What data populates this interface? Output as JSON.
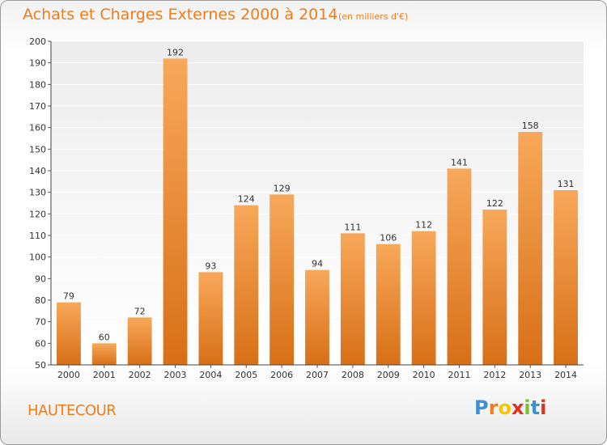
{
  "header": {
    "title": "Achats et Charges Externes 2000 à 2014",
    "subtitle": "(en milliers d'€)"
  },
  "footer": {
    "commune": "HAUTECOUR",
    "logo": "Proxiti"
  },
  "colors": {
    "accent": "#f07c1a",
    "bar_top": "#f7a85a",
    "bar_bottom": "#d86f17",
    "logo_letters": [
      "#3d8fd6",
      "#f07c1a",
      "#f7c500",
      "#e0301e",
      "#7cbf2a",
      "#3d8fd6",
      "#e0301e"
    ]
  },
  "chart_data": {
    "type": "bar",
    "title": "Achats et Charges Externes 2000 à 2014",
    "subtitle": "(en milliers d'€)",
    "xlabel": "",
    "ylabel": "",
    "categories": [
      "2000",
      "2001",
      "2002",
      "2003",
      "2004",
      "2005",
      "2006",
      "2007",
      "2008",
      "2009",
      "2010",
      "2011",
      "2012",
      "2013",
      "2014"
    ],
    "values": [
      79,
      60,
      72,
      192,
      93,
      124,
      129,
      94,
      111,
      106,
      112,
      141,
      122,
      158,
      131
    ],
    "ylim": [
      50,
      200
    ],
    "yticks": [
      50,
      60,
      70,
      80,
      90,
      100,
      110,
      120,
      130,
      140,
      150,
      160,
      170,
      180,
      190,
      200
    ],
    "grid": "horizontal",
    "data_labels": true
  }
}
